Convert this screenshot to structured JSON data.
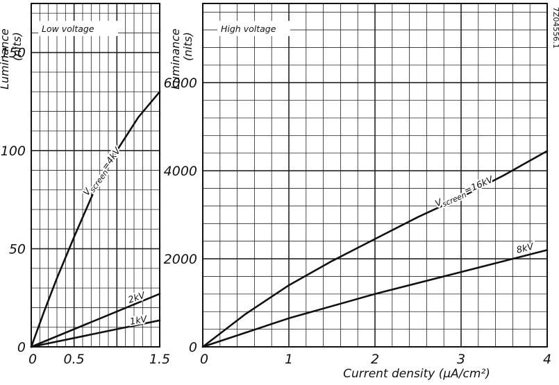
{
  "figure": {
    "reference_number": "7Z04556.1"
  },
  "chart_data": [
    {
      "type": "line",
      "box_label": "Low voltage",
      "ylabel": "Luminance",
      "yunit": "(nits)",
      "xlabel": "",
      "xlim": [
        0,
        1.5
      ],
      "ylim": [
        0,
        175
      ],
      "x_ticks": [
        0,
        0.5,
        1.5
      ],
      "x_tick_labels": [
        "0",
        "0.5",
        "1.5"
      ],
      "y_ticks": [
        0,
        50,
        100,
        150
      ],
      "y_tick_labels": [
        "0",
        "50",
        "100",
        "150"
      ],
      "grid": true,
      "series": [
        {
          "name": "Vscreen=4kV",
          "label_prefix": "V",
          "label_sub": "screen",
          "label_suffix": "=4kV",
          "x": [
            0,
            0.15,
            0.3,
            0.5,
            0.75,
            1.0,
            1.25,
            1.5
          ],
          "y": [
            0,
            18,
            35,
            56,
            81,
            100,
            117,
            130
          ]
        },
        {
          "name": "2kV",
          "label_prefix": "",
          "label_sub": "",
          "label_suffix": "2kV",
          "x": [
            0,
            0.5,
            1.0,
            1.5
          ],
          "y": [
            0,
            9,
            18,
            27
          ]
        },
        {
          "name": "1kV",
          "label_prefix": "",
          "label_sub": "",
          "label_suffix": "1kV",
          "x": [
            0,
            0.5,
            1.0,
            1.5
          ],
          "y": [
            0,
            4.5,
            9,
            13.5
          ]
        }
      ]
    },
    {
      "type": "line",
      "box_label": "High voltage",
      "ylabel": "Luminance",
      "yunit": "(nits)",
      "xlabel": "Current density (μA/cm²)",
      "xlim": [
        0,
        4
      ],
      "ylim": [
        0,
        7800
      ],
      "x_ticks": [
        0,
        1,
        2,
        3,
        4
      ],
      "x_tick_labels": [
        "0",
        "1",
        "2",
        "3",
        "4"
      ],
      "y_ticks": [
        0,
        2000,
        4000,
        6000
      ],
      "y_tick_labels": [
        "0",
        "2000",
        "4000",
        "6000"
      ],
      "grid": true,
      "series": [
        {
          "name": "Vscreen=16kV",
          "label_prefix": "V",
          "label_sub": "screen",
          "label_suffix": "=16kV",
          "x": [
            0,
            0.5,
            1,
            1.5,
            2,
            2.5,
            3,
            3.5,
            4
          ],
          "y": [
            0,
            750,
            1400,
            1950,
            2450,
            2950,
            3400,
            3900,
            4450
          ]
        },
        {
          "name": "8kV",
          "label_prefix": "",
          "label_sub": "",
          "label_suffix": "8kV",
          "x": [
            0,
            1,
            2,
            3,
            4
          ],
          "y": [
            0,
            650,
            1200,
            1700,
            2200
          ]
        }
      ]
    }
  ]
}
